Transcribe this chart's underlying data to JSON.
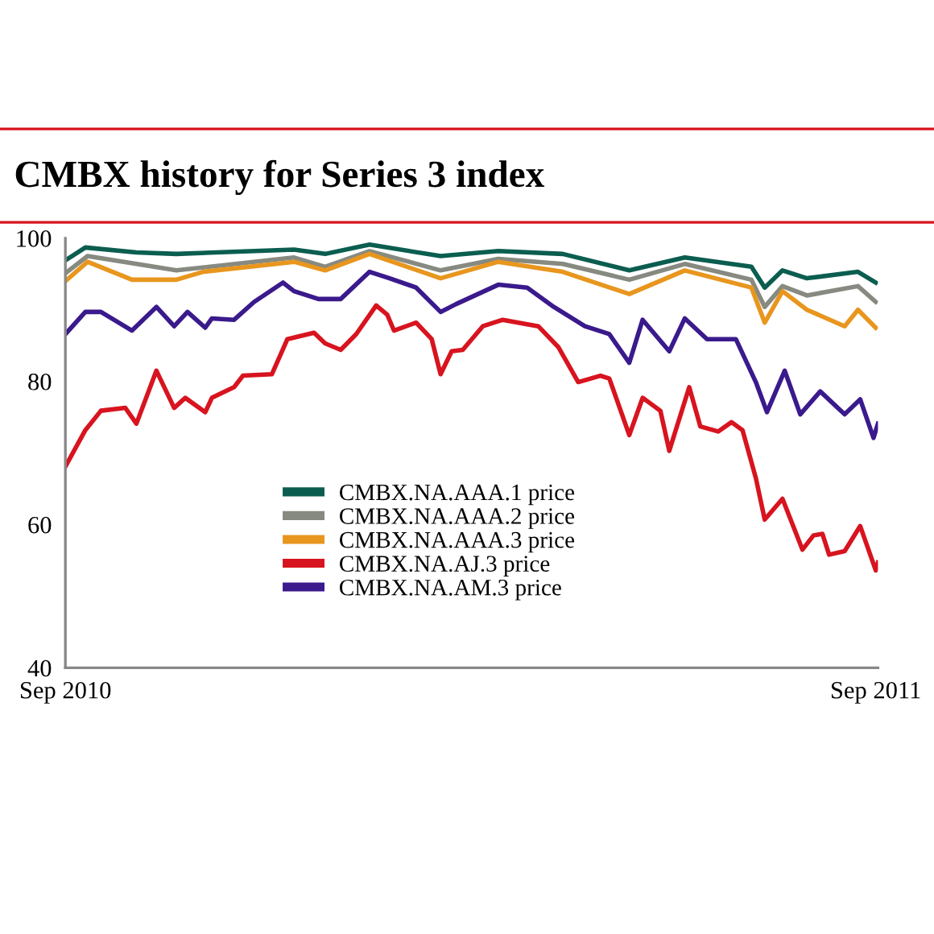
{
  "chart_data": {
    "type": "line",
    "title": "CMBX history for Series 3 index",
    "xlim": [
      "2010-09-01",
      "2011-09-02"
    ],
    "ylim": [
      40,
      100
    ],
    "yticks": [
      40,
      60,
      80,
      100
    ],
    "xticks": [
      {
        "value": "2010-09-01",
        "label": "Sep 2010"
      },
      {
        "value": "2011-09-01",
        "label": "Sep 2011"
      }
    ],
    "grid": false,
    "legend": "bottom",
    "line_style": "solid",
    "marker": "none",
    "series": [
      {
        "name": "CMBX.NA.AAA.1 price",
        "color": "#0b5e4f",
        "x": [
          "2010-09-01",
          "2010-09-10",
          "2010-10-03",
          "2010-10-21",
          "2010-12-13",
          "2010-12-27",
          "2011-01-16",
          "2011-02-17",
          "2011-03-15",
          "2011-04-13",
          "2011-05-13",
          "2011-06-07",
          "2011-07-07",
          "2011-07-13",
          "2011-07-21",
          "2011-08-01",
          "2011-08-24",
          "2011-09-01"
        ],
        "values": [
          96.9,
          98.7,
          98.0,
          97.8,
          98.4,
          97.8,
          99.1,
          97.5,
          98.2,
          97.8,
          95.5,
          97.3,
          96.0,
          93.1,
          95.5,
          94.4,
          95.3,
          93.8
        ]
      },
      {
        "name": "CMBX.NA.AAA.2 price",
        "color": "#878a80",
        "x": [
          "2010-09-01",
          "2010-09-11",
          "2010-10-03",
          "2010-10-21",
          "2010-12-13",
          "2010-12-27",
          "2011-01-16",
          "2011-02-17",
          "2011-03-15",
          "2011-04-13",
          "2011-05-13",
          "2011-06-07",
          "2011-07-07",
          "2011-07-13",
          "2011-07-21",
          "2011-08-01",
          "2011-08-24",
          "2011-09-01"
        ],
        "values": [
          95.1,
          97.5,
          96.4,
          95.5,
          97.3,
          96.0,
          98.2,
          95.5,
          97.1,
          96.4,
          94.2,
          96.4,
          94.2,
          90.4,
          93.3,
          92.0,
          93.3,
          91.1
        ]
      },
      {
        "name": "CMBX.NA.AAA.3 price",
        "color": "#e8961e",
        "x": [
          "2010-09-01",
          "2010-09-11",
          "2010-10-01",
          "2010-10-21",
          "2010-11-02",
          "2010-12-13",
          "2010-12-27",
          "2011-01-16",
          "2011-02-17",
          "2011-03-15",
          "2011-04-13",
          "2011-05-13",
          "2011-06-07",
          "2011-07-07",
          "2011-07-13",
          "2011-07-21",
          "2011-08-01",
          "2011-08-18",
          "2011-08-24",
          "2011-09-01"
        ],
        "values": [
          94.0,
          96.7,
          94.2,
          94.2,
          95.3,
          96.7,
          95.5,
          97.8,
          94.4,
          96.7,
          95.3,
          92.2,
          95.5,
          93.1,
          88.2,
          92.6,
          90.0,
          87.7,
          90.0,
          87.5
        ]
      },
      {
        "name": "CMBX.NA.AJ.3 price",
        "color": "#d7141f",
        "x": [
          "2010-09-01",
          "2010-09-10",
          "2010-09-17",
          "2010-09-28",
          "2010-10-03",
          "2010-10-12",
          "2010-10-20",
          "2010-10-25",
          "2010-11-03",
          "2010-11-06",
          "2010-11-16",
          "2010-11-20",
          "2010-12-03",
          "2010-12-10",
          "2010-12-22",
          "2010-12-27",
          "2011-01-03",
          "2011-01-10",
          "2011-01-19",
          "2011-01-24",
          "2011-01-27",
          "2011-02-06",
          "2011-02-13",
          "2011-02-17",
          "2011-02-22",
          "2011-02-27",
          "2011-03-08",
          "2011-03-17",
          "2011-04-02",
          "2011-04-11",
          "2011-04-20",
          "2011-04-30",
          "2011-05-04",
          "2011-05-13",
          "2011-05-19",
          "2011-05-27",
          "2011-05-31",
          "2011-06-09",
          "2011-06-14",
          "2011-06-22",
          "2011-06-28",
          "2011-07-03",
          "2011-07-09",
          "2011-07-13",
          "2011-07-21",
          "2011-07-30",
          "2011-08-04",
          "2011-08-08",
          "2011-08-11",
          "2011-08-18",
          "2011-08-25",
          "2011-09-01",
          "2011-09-02"
        ],
        "values": [
          68.1,
          73.2,
          75.9,
          76.3,
          74.1,
          81.5,
          76.3,
          77.7,
          75.7,
          77.7,
          79.2,
          80.8,
          81.0,
          85.9,
          86.8,
          85.3,
          84.4,
          86.6,
          90.6,
          89.3,
          87.1,
          88.2,
          85.9,
          81.0,
          84.2,
          84.4,
          87.7,
          88.6,
          87.7,
          84.8,
          79.9,
          80.8,
          80.4,
          72.5,
          77.7,
          75.9,
          70.3,
          79.2,
          73.7,
          73.0,
          74.3,
          73.2,
          66.5,
          60.7,
          63.6,
          56.5,
          58.5,
          58.7,
          55.8,
          56.3,
          59.8,
          53.6,
          54.7
        ]
      },
      {
        "name": "CMBX.NA.AM.3 price",
        "color": "#3a1a8c",
        "x": [
          "2010-09-01",
          "2010-09-10",
          "2010-09-17",
          "2010-10-01",
          "2010-10-12",
          "2010-10-20",
          "2010-10-26",
          "2010-11-03",
          "2010-11-06",
          "2010-11-16",
          "2010-11-25",
          "2010-12-08",
          "2010-12-13",
          "2010-12-24",
          "2011-01-03",
          "2011-01-16",
          "2011-01-25",
          "2011-02-06",
          "2011-02-17",
          "2011-02-24",
          "2011-03-15",
          "2011-03-28",
          "2011-04-09",
          "2011-04-23",
          "2011-05-04",
          "2011-05-13",
          "2011-05-19",
          "2011-05-31",
          "2011-06-07",
          "2011-06-17",
          "2011-06-30",
          "2011-07-09",
          "2011-07-14",
          "2011-07-22",
          "2011-07-29",
          "2011-08-07",
          "2011-08-18",
          "2011-08-25",
          "2011-08-31",
          "2011-09-02"
        ],
        "values": [
          86.6,
          89.7,
          89.7,
          87.1,
          90.4,
          87.7,
          89.7,
          87.5,
          88.8,
          88.6,
          91.1,
          93.8,
          92.6,
          91.5,
          91.5,
          95.3,
          94.4,
          93.1,
          89.7,
          90.8,
          93.5,
          93.1,
          90.4,
          87.7,
          86.6,
          82.6,
          88.6,
          84.2,
          88.8,
          85.9,
          85.9,
          79.9,
          75.7,
          81.5,
          75.4,
          78.6,
          75.4,
          77.5,
          72.1,
          74.1
        ]
      }
    ]
  }
}
